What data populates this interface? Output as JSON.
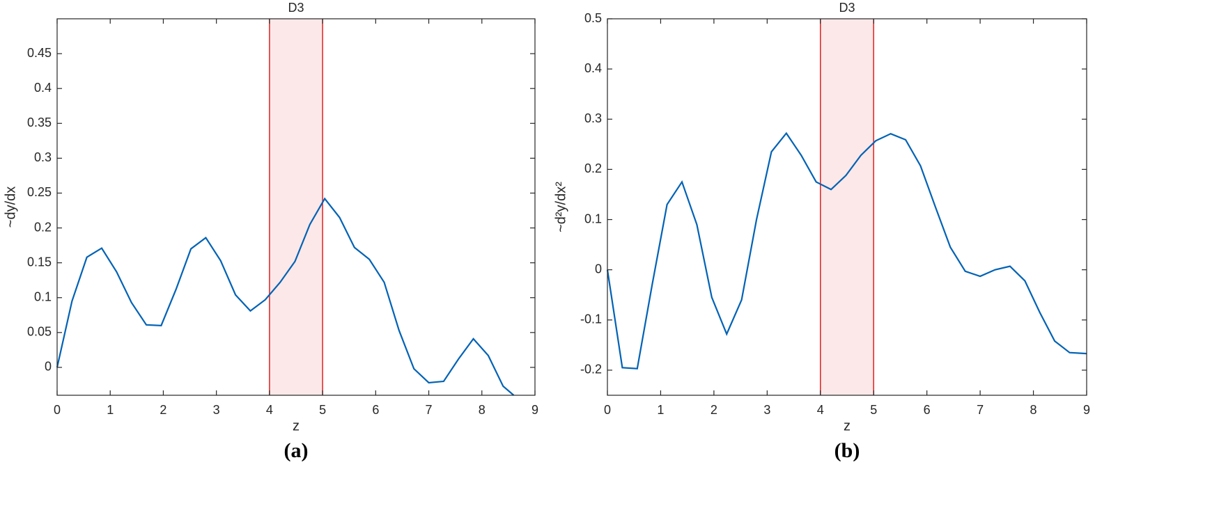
{
  "chart_data": [
    {
      "type": "line",
      "title": "D3",
      "xlabel": "z",
      "ylabel": "~dy/dx",
      "panel_label": "(a)",
      "color": "#0062b5",
      "highlight": [
        4,
        5
      ],
      "highlight_color": "#e02020",
      "x": [
        0,
        0.28,
        0.56,
        0.84,
        1.12,
        1.4,
        1.68,
        1.96,
        2.24,
        2.52,
        2.8,
        3.08,
        3.36,
        3.64,
        3.92,
        4.2,
        4.48,
        4.76,
        5.04,
        5.32,
        5.6,
        5.88,
        6.16,
        6.44,
        6.72,
        7.0,
        7.28,
        7.56,
        7.84,
        8.12,
        8.4,
        8.6
      ],
      "values": [
        0,
        0.095,
        0.158,
        0.171,
        0.137,
        0.093,
        0.061,
        0.06,
        0.112,
        0.17,
        0.186,
        0.153,
        0.104,
        0.081,
        0.097,
        0.122,
        0.152,
        0.205,
        0.242,
        0.215,
        0.172,
        0.155,
        0.122,
        0.053,
        -0.002,
        -0.022,
        -0.02,
        0.012,
        0.041,
        0.017,
        -0.027,
        -0.04
      ],
      "xlim": [
        0,
        9
      ],
      "xticks": [
        0,
        1,
        2,
        3,
        4,
        5,
        6,
        7,
        8,
        9
      ],
      "ylim": [
        -0.04,
        0.5
      ],
      "yticks": [
        0,
        0.05,
        0.1,
        0.15,
        0.2,
        0.25,
        0.3,
        0.35,
        0.4,
        0.45
      ]
    },
    {
      "type": "line",
      "title": "D3",
      "xlabel": "z",
      "ylabel": "~d²y/dx²",
      "panel_label": "(b)",
      "color": "#0062b5",
      "highlight": [
        4,
        5
      ],
      "highlight_color": "#e02020",
      "x": [
        0,
        0.28,
        0.56,
        0.84,
        1.12,
        1.4,
        1.68,
        1.96,
        2.24,
        2.52,
        2.8,
        3.08,
        3.36,
        3.64,
        3.92,
        4.2,
        4.48,
        4.76,
        5.04,
        5.32,
        5.6,
        5.88,
        6.16,
        6.44,
        6.72,
        7.0,
        7.28,
        7.56,
        7.84,
        8.12,
        8.4,
        8.68,
        9
      ],
      "values": [
        0,
        -0.195,
        -0.197,
        -0.03,
        0.13,
        0.175,
        0.09,
        -0.055,
        -0.128,
        -0.06,
        0.1,
        0.235,
        0.272,
        0.228,
        0.175,
        0.16,
        0.188,
        0.228,
        0.257,
        0.271,
        0.259,
        0.207,
        0.125,
        0.045,
        -0.003,
        -0.013,
        0.0,
        0.007,
        -0.022,
        -0.085,
        -0.142,
        -0.165,
        -0.167
      ],
      "xlim": [
        0,
        9
      ],
      "xticks": [
        0,
        1,
        2,
        3,
        4,
        5,
        6,
        7,
        8,
        9
      ],
      "ylim": [
        -0.25,
        0.5
      ],
      "yticks": [
        -0.2,
        -0.1,
        0,
        0.1,
        0.2,
        0.3,
        0.4,
        0.5
      ]
    }
  ]
}
